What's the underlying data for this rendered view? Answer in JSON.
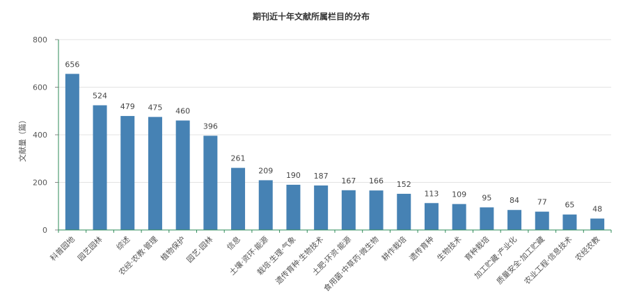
{
  "chart_data": {
    "type": "bar",
    "title": "期刊近十年文献所属栏目的分布",
    "ylabel": "文献量（篇）",
    "xlabel": "",
    "ylim": [
      0,
      800
    ],
    "yticks": [
      0,
      200,
      400,
      600,
      800
    ],
    "grid": true,
    "bar_color": "#4682b4",
    "categories": [
      "科普园地",
      "园艺园林",
      "综述",
      "农经·农教·管理",
      "植物保护",
      "园艺·园林",
      "信息",
      "土壤·资环·能源",
      "栽培·生理·气象",
      "遗传育种·生物技术",
      "土肥·环资·能源",
      "食用菌·中草药·微生物",
      "耕作栽培",
      "遗传育种",
      "生物技术",
      "育种栽培",
      "加工贮藏·产业化",
      "质量安全·加工贮藏",
      "农业工程·信息技术",
      "农经农教"
    ],
    "values": [
      656,
      524,
      479,
      475,
      460,
      396,
      261,
      209,
      190,
      187,
      167,
      166,
      152,
      113,
      109,
      95,
      84,
      77,
      65,
      48
    ]
  }
}
